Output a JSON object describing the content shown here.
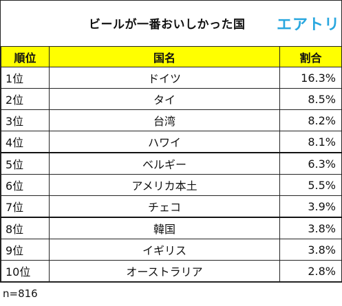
{
  "title": "ビールが一番おいしかった国",
  "logo_text": "エアトリ",
  "colors": {
    "header_bg": "#ffff00",
    "logo": "#29a7df",
    "border": "#222222"
  },
  "table": {
    "headers": {
      "rank": "順位",
      "country": "国名",
      "share": "割合"
    },
    "rows": [
      {
        "rank": "1位",
        "country": "ドイツ",
        "share": "16.3%"
      },
      {
        "rank": "2位",
        "country": "タイ",
        "share": "8.5%"
      },
      {
        "rank": "3位",
        "country": "台湾",
        "share": "8.2%"
      },
      {
        "rank": "4位",
        "country": "ハワイ",
        "share": "8.1%"
      },
      {
        "rank": "5位",
        "country": "ベルギー",
        "share": "6.3%"
      },
      {
        "rank": "6位",
        "country": "アメリカ本土",
        "share": "5.5%"
      },
      {
        "rank": "7位",
        "country": "チェコ",
        "share": "3.9%"
      },
      {
        "rank": "8位",
        "country": "韓国",
        "share": "3.8%"
      },
      {
        "rank": "9位",
        "country": "イギリス",
        "share": "3.8%"
      },
      {
        "rank": "10位",
        "country": "オーストラリア",
        "share": "2.8%"
      }
    ]
  },
  "footnote": "n=816"
}
